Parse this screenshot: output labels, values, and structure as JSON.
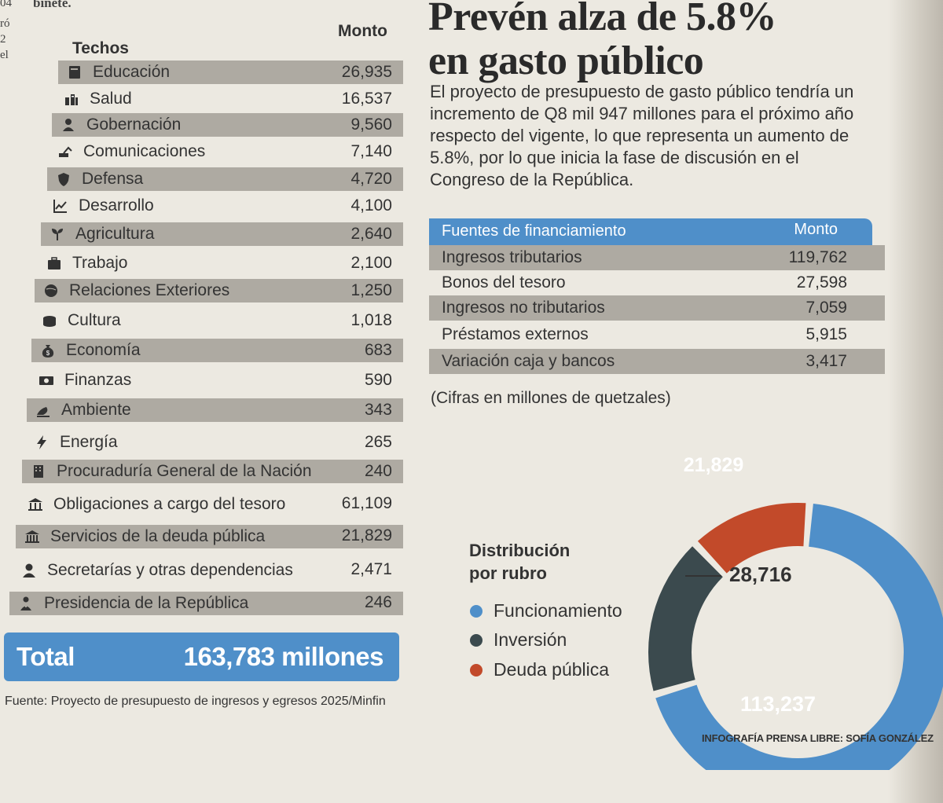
{
  "margin_fragments": [
    "04",
    "ró",
    "2",
    "el"
  ],
  "top_fragment": "binete.",
  "techos_header": "Techos",
  "monto_header": "Monto",
  "techos": [
    {
      "label": "Educación",
      "value": "26,935",
      "icon": "book-icon"
    },
    {
      "label": "Salud",
      "value": "16,537",
      "icon": "health-icon"
    },
    {
      "label": "Gobernación",
      "value": "9,560",
      "icon": "officer-icon"
    },
    {
      "label": "Comunicaciones",
      "value": "7,140",
      "icon": "excavator-icon"
    },
    {
      "label": "Defensa",
      "value": "4,720",
      "icon": "shield-icon"
    },
    {
      "label": "Desarrollo",
      "value": "4,100",
      "icon": "chart-line-icon"
    },
    {
      "label": "Agricultura",
      "value": "2,640",
      "icon": "sprout-icon"
    },
    {
      "label": "Trabajo",
      "value": "2,100",
      "icon": "briefcase-icon"
    },
    {
      "label": "Relaciones Exteriores",
      "value": "1,250",
      "icon": "globe-icon"
    },
    {
      "label": "Cultura",
      "value": "1,018",
      "icon": "drum-icon"
    },
    {
      "label": "Economía",
      "value": "683",
      "icon": "money-bag-icon"
    },
    {
      "label": "Finanzas",
      "value": "590",
      "icon": "banknote-icon"
    },
    {
      "label": "Ambiente",
      "value": "343",
      "icon": "leaf-hand-icon"
    },
    {
      "label": "Energía",
      "value": "265",
      "icon": "lightning-icon"
    },
    {
      "label": "Procuraduría General de la Nación",
      "value": "240",
      "icon": "building-icon"
    },
    {
      "label": "Obligaciones a cargo del tesoro",
      "value": "61,109",
      "icon": "bank-icon"
    },
    {
      "label": "Servicios de la deuda pública",
      "value": "21,829",
      "icon": "bank-columns-icon"
    },
    {
      "label": "Secretarías y otras dependencias",
      "value": "2,471",
      "icon": "person-icon"
    },
    {
      "label": "Presidencia de la República",
      "value": "246",
      "icon": "president-icon"
    }
  ],
  "total": {
    "label": "Total",
    "value": "163,783 millones"
  },
  "fuente": "Fuente: Proyecto de presupuesto de ingresos y egresos 2025/Minfin",
  "headline": {
    "line1": "Prevén alza de 5.8%",
    "line2": "en gasto público"
  },
  "lead": "El proyecto de presupuesto de gasto público tendría un incremento de Q8 mil 947 millones para el próximo año respecto del vigente, lo que representa un aumento de 5.8%, por lo que inicia la fase de discusión en el Congreso de la República.",
  "financiamiento": {
    "header_label": "Fuentes de financiamiento",
    "header_value": "Monto",
    "rows": [
      {
        "label": "Ingresos tributarios",
        "value": "119,762"
      },
      {
        "label": "Bonos del tesoro",
        "value": "27,598"
      },
      {
        "label": "Ingresos no tributarios",
        "value": "7,059"
      },
      {
        "label": "Préstamos externos",
        "value": "5,915"
      },
      {
        "label": "Variación caja y bancos",
        "value": "3,417"
      }
    ]
  },
  "cifras_note": "(Cifras en millones de quetzales)",
  "distribution": {
    "title_line1": "Distribución",
    "title_line2": "por rubro",
    "legend": [
      {
        "name": "Funcionamiento",
        "color": "#4f8fc9"
      },
      {
        "name": "Inversión",
        "color": "#3b4a4e"
      },
      {
        "name": "Deuda pública",
        "color": "#c24a2a"
      }
    ],
    "labels": {
      "funcionamiento": "113,237",
      "inversion": "28,716",
      "deuda": "21,829"
    }
  },
  "chart_data": {
    "type": "pie",
    "title": "Distribución por rubro",
    "categories": [
      "Funcionamiento",
      "Inversión",
      "Deuda pública"
    ],
    "values": [
      113237,
      28716,
      21829
    ],
    "colors": [
      "#4f8fc9",
      "#3b4a4e",
      "#c24a2a"
    ]
  },
  "credit": "INFOGRAFÍA PRENSA LIBRE: SOFÍA GONZÁLEZ"
}
